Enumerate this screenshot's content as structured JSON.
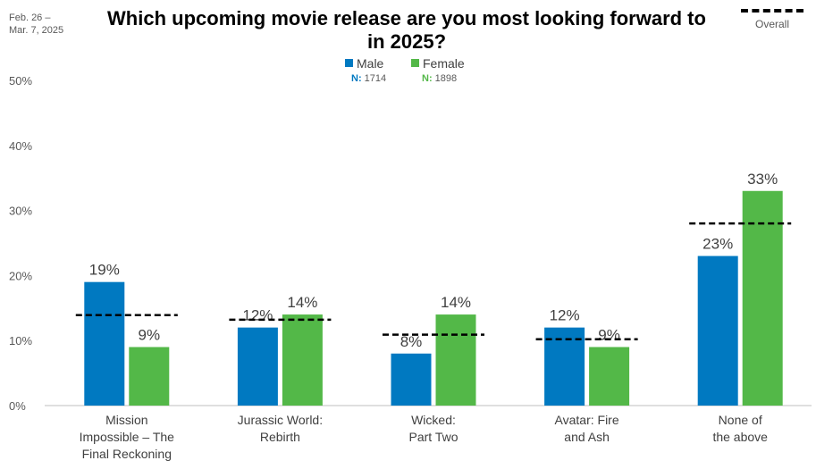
{
  "date_range": [
    "Feb. 26 –",
    "Mar. 7, 2025"
  ],
  "legend": {
    "male": {
      "label": "Male",
      "n_prefix": "N:",
      "n_value": "1714"
    },
    "female": {
      "label": "Female",
      "n_prefix": "N:",
      "n_value": "1898"
    },
    "overall": "Overall"
  },
  "colors": {
    "male": "#0079C1",
    "female": "#53B848",
    "overall": "#000000"
  },
  "chart_data": {
    "type": "bar",
    "title": "Which upcoming movie release are you most looking forward to in 2025?",
    "categories": [
      [
        "Mission",
        "Impossible – The",
        "Final Reckoning"
      ],
      [
        "Jurassic World:",
        "Rebirth"
      ],
      [
        "Wicked:",
        "Part Two"
      ],
      [
        "Avatar: Fire",
        "and Ash"
      ],
      [
        "None of",
        "the above"
      ]
    ],
    "series": [
      {
        "name": "Male",
        "values": [
          19,
          12,
          8,
          12,
          23
        ],
        "labels": [
          "19%",
          "12%",
          "8%",
          "12%",
          "23%"
        ]
      },
      {
        "name": "Female",
        "values": [
          9,
          14,
          14,
          9,
          33
        ],
        "labels": [
          "9%",
          "14%",
          "14%",
          "9%",
          "33%"
        ]
      }
    ],
    "overall": [
      13.9,
      13.2,
      10.9,
      10.2,
      28
    ],
    "ylim": [
      0,
      50
    ],
    "yticks": [
      "0%",
      "10%",
      "20%",
      "30%",
      "40%",
      "50%"
    ],
    "grid": false,
    "legend_position": "top-center"
  }
}
